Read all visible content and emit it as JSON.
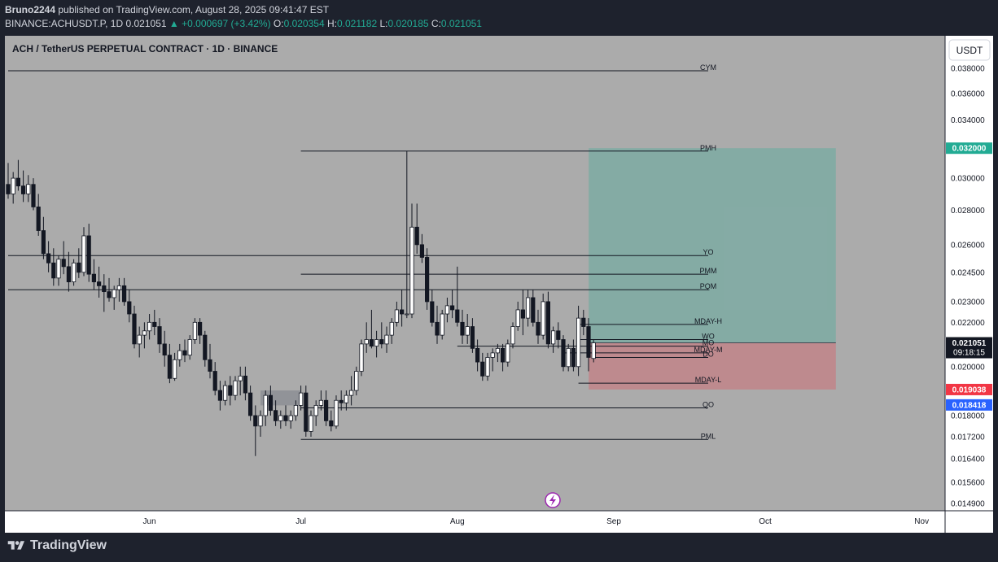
{
  "header": {
    "author": "Bruno2244",
    "published_text": "published on TradingView.com, August 28, 2025 09:41:47 EST",
    "symbol_line": "BINANCE:ACHUSDT.P, 1D",
    "last": "0.021051",
    "change_arrow": "▲",
    "change": "+0.000697 (+3.42%)",
    "o_label": "O:",
    "o_value": "0.020354",
    "h_label": "H:",
    "h_value": "0.021182",
    "l_label": "L:",
    "l_value": "0.020185",
    "c_label": "C:",
    "c_value": "0.021051"
  },
  "chart_title": "ACH / TetherUS PERPETUAL CONTRACT · 1D · BINANCE",
  "currency_button": "USDT",
  "brand": "TradingView",
  "colors": {
    "up": "#22ab94",
    "down": "#f23645",
    "background": "#ababab",
    "axis_bg": "#ffffff"
  },
  "chart_data": {
    "type": "candlestick",
    "y_scale": "log",
    "y_ticks": [
      "0.038000",
      "0.036000",
      "0.034000",
      "0.032000",
      "0.030000",
      "0.028000",
      "0.026000",
      "0.024500",
      "0.023000",
      "0.022000",
      "0.021000",
      "0.020000",
      "0.019000",
      "0.018000",
      "0.017200",
      "0.016400",
      "0.015600",
      "0.014900"
    ],
    "x_ticks": [
      "Jun",
      "Jul",
      "Aug",
      "Sep",
      "Oct",
      "Nov"
    ],
    "price_badges": [
      {
        "label": "0.032000",
        "kind": "target",
        "color": "#22ab94"
      },
      {
        "label": "0.021051",
        "kind": "last",
        "sub": "09:18:15",
        "color": "#131722"
      },
      {
        "label": "0.019038",
        "kind": "stop",
        "color": "#f23645"
      },
      {
        "label": "0.018418",
        "kind": "level",
        "color": "#2962ff"
      }
    ],
    "levels": [
      {
        "label": "CYM",
        "price": 0.0378,
        "from": "2025-05-04"
      },
      {
        "label": "PMH",
        "price": 0.0318,
        "from": "2025-07-01"
      },
      {
        "label": "YO",
        "price": 0.0254,
        "from": "2025-05-04"
      },
      {
        "label": "PMM",
        "price": 0.0244,
        "from": "2025-07-01"
      },
      {
        "label": "PQM",
        "price": 0.0236,
        "from": "2025-05-04"
      },
      {
        "label": "MDAY-H",
        "price": 0.0219,
        "from": "2025-08-25"
      },
      {
        "label": "WO",
        "price": 0.0212,
        "from": "2025-08-25"
      },
      {
        "label": "MO",
        "price": 0.0209,
        "from": "2025-08-01"
      },
      {
        "label": "MDAY-M",
        "price": 0.0206,
        "from": "2025-08-22"
      },
      {
        "label": "DO",
        "price": 0.0204,
        "from": "2025-08-28"
      },
      {
        "label": "MDAY-L",
        "price": 0.0193,
        "from": "2025-08-25"
      },
      {
        "label": "QO",
        "price": 0.0183,
        "from": "2025-07-01"
      },
      {
        "label": "PML",
        "price": 0.0171,
        "from": "2025-07-01"
      }
    ],
    "position": {
      "entry": 0.021051,
      "target": 0.032,
      "stop": 0.019038,
      "start": "2025-08-28",
      "end": "2025-10-15"
    },
    "candles": [
      {
        "d": "2025-05-04",
        "o": 0.0296,
        "h": 0.031,
        "l": 0.0287,
        "c": 0.029
      },
      {
        "d": "2025-05-05",
        "o": 0.029,
        "h": 0.0304,
        "l": 0.0284,
        "c": 0.03
      },
      {
        "d": "2025-05-06",
        "o": 0.03,
        "h": 0.0312,
        "l": 0.0292,
        "c": 0.0295
      },
      {
        "d": "2025-05-07",
        "o": 0.0295,
        "h": 0.0305,
        "l": 0.0285,
        "c": 0.029
      },
      {
        "d": "2025-05-08",
        "o": 0.029,
        "h": 0.0302,
        "l": 0.0285,
        "c": 0.0296
      },
      {
        "d": "2025-05-09",
        "o": 0.0296,
        "h": 0.03,
        "l": 0.028,
        "c": 0.0282
      },
      {
        "d": "2025-05-10",
        "o": 0.0282,
        "h": 0.029,
        "l": 0.0265,
        "c": 0.0268
      },
      {
        "d": "2025-05-11",
        "o": 0.0268,
        "h": 0.0276,
        "l": 0.0252,
        "c": 0.0255
      },
      {
        "d": "2025-05-12",
        "o": 0.0255,
        "h": 0.0262,
        "l": 0.0245,
        "c": 0.025
      },
      {
        "d": "2025-05-13",
        "o": 0.025,
        "h": 0.0258,
        "l": 0.0238,
        "c": 0.0242
      },
      {
        "d": "2025-05-14",
        "o": 0.0242,
        "h": 0.0254,
        "l": 0.0238,
        "c": 0.0252
      },
      {
        "d": "2025-05-15",
        "o": 0.0252,
        "h": 0.0262,
        "l": 0.0244,
        "c": 0.0248
      },
      {
        "d": "2025-05-16",
        "o": 0.0248,
        "h": 0.0256,
        "l": 0.0235,
        "c": 0.024
      },
      {
        "d": "2025-05-17",
        "o": 0.024,
        "h": 0.0252,
        "l": 0.0238,
        "c": 0.025
      },
      {
        "d": "2025-05-18",
        "o": 0.025,
        "h": 0.0258,
        "l": 0.0242,
        "c": 0.0245
      },
      {
        "d": "2025-05-19",
        "o": 0.0245,
        "h": 0.027,
        "l": 0.0243,
        "c": 0.0265
      },
      {
        "d": "2025-05-20",
        "o": 0.0265,
        "h": 0.0272,
        "l": 0.024,
        "c": 0.0244
      },
      {
        "d": "2025-05-21",
        "o": 0.0244,
        "h": 0.0252,
        "l": 0.0236,
        "c": 0.024
      },
      {
        "d": "2025-05-22",
        "o": 0.024,
        "h": 0.0248,
        "l": 0.0232,
        "c": 0.0238
      },
      {
        "d": "2025-05-23",
        "o": 0.0238,
        "h": 0.0244,
        "l": 0.0225,
        "c": 0.0235
      },
      {
        "d": "2025-05-24",
        "o": 0.0235,
        "h": 0.0242,
        "l": 0.023,
        "c": 0.0232
      },
      {
        "d": "2025-05-25",
        "o": 0.0232,
        "h": 0.0238,
        "l": 0.0226,
        "c": 0.0236
      },
      {
        "d": "2025-05-26",
        "o": 0.0236,
        "h": 0.0242,
        "l": 0.023,
        "c": 0.0238
      },
      {
        "d": "2025-05-27",
        "o": 0.0238,
        "h": 0.0242,
        "l": 0.0228,
        "c": 0.023
      },
      {
        "d": "2025-05-28",
        "o": 0.023,
        "h": 0.0236,
        "l": 0.022,
        "c": 0.0224
      },
      {
        "d": "2025-05-29",
        "o": 0.0224,
        "h": 0.0228,
        "l": 0.0208,
        "c": 0.021
      },
      {
        "d": "2025-05-30",
        "o": 0.021,
        "h": 0.0218,
        "l": 0.0204,
        "c": 0.0214
      },
      {
        "d": "2025-05-31",
        "o": 0.0214,
        "h": 0.022,
        "l": 0.0208,
        "c": 0.0216
      },
      {
        "d": "2025-06-01",
        "o": 0.0216,
        "h": 0.0224,
        "l": 0.0212,
        "c": 0.022
      },
      {
        "d": "2025-06-02",
        "o": 0.022,
        "h": 0.0226,
        "l": 0.0214,
        "c": 0.0218
      },
      {
        "d": "2025-06-03",
        "o": 0.0218,
        "h": 0.0222,
        "l": 0.0206,
        "c": 0.021
      },
      {
        "d": "2025-06-04",
        "o": 0.021,
        "h": 0.0216,
        "l": 0.02,
        "c": 0.0205
      },
      {
        "d": "2025-06-05",
        "o": 0.0205,
        "h": 0.021,
        "l": 0.0193,
        "c": 0.0195
      },
      {
        "d": "2025-06-06",
        "o": 0.0195,
        "h": 0.0206,
        "l": 0.0194,
        "c": 0.0203
      },
      {
        "d": "2025-06-07",
        "o": 0.0203,
        "h": 0.021,
        "l": 0.02,
        "c": 0.0207
      },
      {
        "d": "2025-06-08",
        "o": 0.0207,
        "h": 0.0212,
        "l": 0.0202,
        "c": 0.0205
      },
      {
        "d": "2025-06-09",
        "o": 0.0205,
        "h": 0.0214,
        "l": 0.0203,
        "c": 0.0212
      },
      {
        "d": "2025-06-10",
        "o": 0.0212,
        "h": 0.0222,
        "l": 0.021,
        "c": 0.022
      },
      {
        "d": "2025-06-11",
        "o": 0.022,
        "h": 0.0222,
        "l": 0.021,
        "c": 0.0214
      },
      {
        "d": "2025-06-12",
        "o": 0.0214,
        "h": 0.0216,
        "l": 0.02,
        "c": 0.0203
      },
      {
        "d": "2025-06-13",
        "o": 0.0203,
        "h": 0.021,
        "l": 0.0195,
        "c": 0.0198
      },
      {
        "d": "2025-06-14",
        "o": 0.0198,
        "h": 0.0202,
        "l": 0.0188,
        "c": 0.019
      },
      {
        "d": "2025-06-15",
        "o": 0.019,
        "h": 0.0194,
        "l": 0.0182,
        "c": 0.0186
      },
      {
        "d": "2025-06-16",
        "o": 0.0186,
        "h": 0.0194,
        "l": 0.0184,
        "c": 0.0192
      },
      {
        "d": "2025-06-17",
        "o": 0.0192,
        "h": 0.0196,
        "l": 0.0184,
        "c": 0.0188
      },
      {
        "d": "2025-06-18",
        "o": 0.0188,
        "h": 0.0196,
        "l": 0.0186,
        "c": 0.0194
      },
      {
        "d": "2025-06-19",
        "o": 0.0194,
        "h": 0.02,
        "l": 0.0188,
        "c": 0.0196
      },
      {
        "d": "2025-06-20",
        "o": 0.0196,
        "h": 0.02,
        "l": 0.0186,
        "c": 0.0189
      },
      {
        "d": "2025-06-21",
        "o": 0.0189,
        "h": 0.0192,
        "l": 0.0178,
        "c": 0.018
      },
      {
        "d": "2025-06-22",
        "o": 0.018,
        "h": 0.0184,
        "l": 0.0165,
        "c": 0.0176
      },
      {
        "d": "2025-06-23",
        "o": 0.0176,
        "h": 0.0182,
        "l": 0.0172,
        "c": 0.018
      },
      {
        "d": "2025-06-24",
        "o": 0.018,
        "h": 0.019,
        "l": 0.0176,
        "c": 0.0188
      },
      {
        "d": "2025-06-25",
        "o": 0.0188,
        "h": 0.0192,
        "l": 0.018,
        "c": 0.0182
      },
      {
        "d": "2025-06-26",
        "o": 0.0182,
        "h": 0.0186,
        "l": 0.0176,
        "c": 0.0178
      },
      {
        "d": "2025-06-27",
        "o": 0.0178,
        "h": 0.0182,
        "l": 0.0175,
        "c": 0.018
      },
      {
        "d": "2025-06-28",
        "o": 0.018,
        "h": 0.0184,
        "l": 0.0176,
        "c": 0.0178
      },
      {
        "d": "2025-06-29",
        "o": 0.0178,
        "h": 0.0182,
        "l": 0.0175,
        "c": 0.018
      },
      {
        "d": "2025-06-30",
        "o": 0.018,
        "h": 0.0186,
        "l": 0.0178,
        "c": 0.0184
      },
      {
        "d": "2025-07-01",
        "o": 0.0184,
        "h": 0.0192,
        "l": 0.0182,
        "c": 0.0189
      },
      {
        "d": "2025-07-02",
        "o": 0.0189,
        "h": 0.0192,
        "l": 0.0172,
        "c": 0.0174
      },
      {
        "d": "2025-07-03",
        "o": 0.0174,
        "h": 0.0182,
        "l": 0.0172,
        "c": 0.018
      },
      {
        "d": "2025-07-04",
        "o": 0.018,
        "h": 0.0186,
        "l": 0.0176,
        "c": 0.0184
      },
      {
        "d": "2025-07-05",
        "o": 0.0184,
        "h": 0.019,
        "l": 0.0182,
        "c": 0.0186
      },
      {
        "d": "2025-07-06",
        "o": 0.0186,
        "h": 0.019,
        "l": 0.0176,
        "c": 0.0178
      },
      {
        "d": "2025-07-07",
        "o": 0.0178,
        "h": 0.0182,
        "l": 0.0174,
        "c": 0.0176
      },
      {
        "d": "2025-07-08",
        "o": 0.0176,
        "h": 0.0188,
        "l": 0.0175,
        "c": 0.0186
      },
      {
        "d": "2025-07-09",
        "o": 0.0186,
        "h": 0.019,
        "l": 0.0182,
        "c": 0.0185
      },
      {
        "d": "2025-07-10",
        "o": 0.0185,
        "h": 0.019,
        "l": 0.0182,
        "c": 0.0188
      },
      {
        "d": "2025-07-11",
        "o": 0.0188,
        "h": 0.0196,
        "l": 0.0184,
        "c": 0.019
      },
      {
        "d": "2025-07-12",
        "o": 0.019,
        "h": 0.02,
        "l": 0.0188,
        "c": 0.0198
      },
      {
        "d": "2025-07-13",
        "o": 0.0198,
        "h": 0.0212,
        "l": 0.0196,
        "c": 0.021
      },
      {
        "d": "2025-07-14",
        "o": 0.021,
        "h": 0.022,
        "l": 0.0206,
        "c": 0.0212
      },
      {
        "d": "2025-07-15",
        "o": 0.0212,
        "h": 0.0226,
        "l": 0.0208,
        "c": 0.0209
      },
      {
        "d": "2025-07-16",
        "o": 0.0209,
        "h": 0.0216,
        "l": 0.0204,
        "c": 0.0212
      },
      {
        "d": "2025-07-17",
        "o": 0.0212,
        "h": 0.022,
        "l": 0.0208,
        "c": 0.021
      },
      {
        "d": "2025-07-18",
        "o": 0.021,
        "h": 0.0218,
        "l": 0.0206,
        "c": 0.0214
      },
      {
        "d": "2025-07-19",
        "o": 0.0214,
        "h": 0.0222,
        "l": 0.021,
        "c": 0.022
      },
      {
        "d": "2025-07-20",
        "o": 0.022,
        "h": 0.023,
        "l": 0.0218,
        "c": 0.0226
      },
      {
        "d": "2025-07-21",
        "o": 0.0226,
        "h": 0.0236,
        "l": 0.0218,
        "c": 0.0224
      },
      {
        "d": "2025-07-22",
        "o": 0.0224,
        "h": 0.0318,
        "l": 0.0222,
        "c": 0.0224
      },
      {
        "d": "2025-07-23",
        "o": 0.0224,
        "h": 0.0284,
        "l": 0.0222,
        "c": 0.027
      },
      {
        "d": "2025-07-24",
        "o": 0.027,
        "h": 0.0284,
        "l": 0.0255,
        "c": 0.026
      },
      {
        "d": "2025-07-25",
        "o": 0.026,
        "h": 0.0266,
        "l": 0.025,
        "c": 0.0253
      },
      {
        "d": "2025-07-26",
        "o": 0.0253,
        "h": 0.0258,
        "l": 0.0226,
        "c": 0.023
      },
      {
        "d": "2025-07-27",
        "o": 0.023,
        "h": 0.0236,
        "l": 0.0218,
        "c": 0.022
      },
      {
        "d": "2025-07-28",
        "o": 0.022,
        "h": 0.0228,
        "l": 0.021,
        "c": 0.0214
      },
      {
        "d": "2025-07-29",
        "o": 0.0214,
        "h": 0.0226,
        "l": 0.0212,
        "c": 0.0224
      },
      {
        "d": "2025-07-30",
        "o": 0.0224,
        "h": 0.0232,
        "l": 0.022,
        "c": 0.0228
      },
      {
        "d": "2025-07-31",
        "o": 0.0228,
        "h": 0.0236,
        "l": 0.0222,
        "c": 0.0226
      },
      {
        "d": "2025-08-01",
        "o": 0.0226,
        "h": 0.0248,
        "l": 0.0218,
        "c": 0.022
      },
      {
        "d": "2025-08-02",
        "o": 0.022,
        "h": 0.0226,
        "l": 0.021,
        "c": 0.0214
      },
      {
        "d": "2025-08-03",
        "o": 0.0214,
        "h": 0.0224,
        "l": 0.021,
        "c": 0.0218
      },
      {
        "d": "2025-08-04",
        "o": 0.0218,
        "h": 0.0222,
        "l": 0.0206,
        "c": 0.0208
      },
      {
        "d": "2025-08-05",
        "o": 0.0208,
        "h": 0.0212,
        "l": 0.0198,
        "c": 0.0202
      },
      {
        "d": "2025-08-06",
        "o": 0.0202,
        "h": 0.0206,
        "l": 0.0194,
        "c": 0.0196
      },
      {
        "d": "2025-08-07",
        "o": 0.0196,
        "h": 0.0206,
        "l": 0.0194,
        "c": 0.0204
      },
      {
        "d": "2025-08-08",
        "o": 0.0204,
        "h": 0.0208,
        "l": 0.0198,
        "c": 0.0206
      },
      {
        "d": "2025-08-09",
        "o": 0.0206,
        "h": 0.021,
        "l": 0.0202,
        "c": 0.0208
      },
      {
        "d": "2025-08-10",
        "o": 0.0208,
        "h": 0.021,
        "l": 0.0198,
        "c": 0.0202
      },
      {
        "d": "2025-08-11",
        "o": 0.0202,
        "h": 0.0212,
        "l": 0.02,
        "c": 0.021
      },
      {
        "d": "2025-08-12",
        "o": 0.021,
        "h": 0.022,
        "l": 0.0208,
        "c": 0.0218
      },
      {
        "d": "2025-08-13",
        "o": 0.0218,
        "h": 0.023,
        "l": 0.0216,
        "c": 0.0226
      },
      {
        "d": "2025-08-14",
        "o": 0.0226,
        "h": 0.0236,
        "l": 0.0214,
        "c": 0.0222
      },
      {
        "d": "2025-08-15",
        "o": 0.0222,
        "h": 0.0236,
        "l": 0.0218,
        "c": 0.0232
      },
      {
        "d": "2025-08-16",
        "o": 0.0232,
        "h": 0.0236,
        "l": 0.0218,
        "c": 0.022
      },
      {
        "d": "2025-08-17",
        "o": 0.022,
        "h": 0.0226,
        "l": 0.021,
        "c": 0.0214
      },
      {
        "d": "2025-08-18",
        "o": 0.0214,
        "h": 0.0234,
        "l": 0.0212,
        "c": 0.023
      },
      {
        "d": "2025-08-19",
        "o": 0.023,
        "h": 0.0235,
        "l": 0.0208,
        "c": 0.021
      },
      {
        "d": "2025-08-20",
        "o": 0.021,
        "h": 0.0218,
        "l": 0.0206,
        "c": 0.0216
      },
      {
        "d": "2025-08-21",
        "o": 0.0216,
        "h": 0.022,
        "l": 0.0208,
        "c": 0.0212
      },
      {
        "d": "2025-08-22",
        "o": 0.0212,
        "h": 0.0214,
        "l": 0.0198,
        "c": 0.02
      },
      {
        "d": "2025-08-23",
        "o": 0.02,
        "h": 0.021,
        "l": 0.0198,
        "c": 0.0208
      },
      {
        "d": "2025-08-24",
        "o": 0.0208,
        "h": 0.0212,
        "l": 0.0198,
        "c": 0.02
      },
      {
        "d": "2025-08-25",
        "o": 0.02,
        "h": 0.0228,
        "l": 0.0196,
        "c": 0.0222
      },
      {
        "d": "2025-08-26",
        "o": 0.0222,
        "h": 0.0226,
        "l": 0.0214,
        "c": 0.0218
      },
      {
        "d": "2025-08-27",
        "o": 0.0218,
        "h": 0.0222,
        "l": 0.0198,
        "c": 0.0204
      },
      {
        "d": "2025-08-28",
        "o": 0.020354,
        "h": 0.021182,
        "l": 0.020185,
        "c": 0.021051
      }
    ]
  }
}
